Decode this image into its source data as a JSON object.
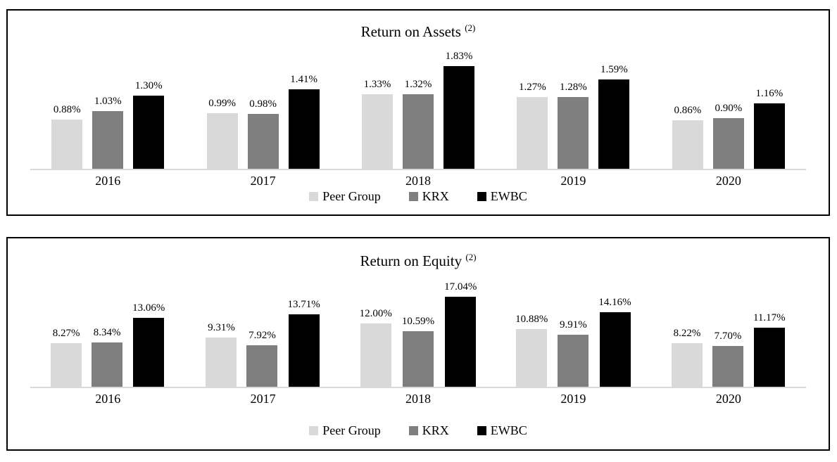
{
  "chart_data": [
    {
      "type": "bar",
      "title": "Return on Assets",
      "title_superscript": "(2)",
      "categories": [
        "2016",
        "2017",
        "2018",
        "2019",
        "2020"
      ],
      "series": [
        {
          "name": "Peer Group",
          "color": "#d9d9d9",
          "values": [
            0.88,
            0.99,
            1.33,
            1.27,
            0.86
          ],
          "labels": [
            "0.88%",
            "0.99%",
            "1.33%",
            "1.27%",
            "0.86%"
          ]
        },
        {
          "name": "KRX",
          "color": "#7f7f7f",
          "values": [
            1.03,
            0.98,
            1.32,
            1.28,
            0.9
          ],
          "labels": [
            "1.03%",
            "0.98%",
            "1.32%",
            "1.28%",
            "0.90%"
          ]
        },
        {
          "name": "EWBC",
          "color": "#000000",
          "values": [
            1.3,
            1.41,
            1.83,
            1.59,
            1.16
          ],
          "labels": [
            "1.30%",
            "1.41%",
            "1.83%",
            "1.59%",
            "1.16%"
          ]
        }
      ],
      "xlabel": "",
      "ylabel": "",
      "ylim": [
        0,
        2.0
      ],
      "grid": false,
      "legend_position": "bottom",
      "axis_color": "#d9d9d9",
      "value_suffix": "%"
    },
    {
      "type": "bar",
      "title": "Return on Equity",
      "title_superscript": "(2)",
      "categories": [
        "2016",
        "2017",
        "2018",
        "2019",
        "2020"
      ],
      "series": [
        {
          "name": "Peer Group",
          "color": "#d9d9d9",
          "values": [
            8.27,
            9.31,
            12.0,
            10.88,
            8.22
          ],
          "labels": [
            "8.27%",
            "9.31%",
            "12.00%",
            "10.88%",
            "8.22%"
          ]
        },
        {
          "name": "KRX",
          "color": "#7f7f7f",
          "values": [
            8.34,
            7.92,
            10.59,
            9.91,
            7.7
          ],
          "labels": [
            "8.34%",
            "7.92%",
            "10.59%",
            "9.91%",
            "7.70%"
          ]
        },
        {
          "name": "EWBC",
          "color": "#000000",
          "values": [
            13.06,
            13.71,
            17.04,
            14.16,
            11.17
          ],
          "labels": [
            "13.06%",
            "13.71%",
            "17.04%",
            "14.16%",
            "11.17%"
          ]
        }
      ],
      "xlabel": "",
      "ylabel": "",
      "ylim": [
        0,
        20
      ],
      "grid": false,
      "legend_position": "bottom",
      "axis_color": "#d9d9d9",
      "value_suffix": "%"
    }
  ],
  "colors": {
    "peer_group": "#d9d9d9",
    "krx": "#7f7f7f",
    "ewbc": "#000000",
    "axis_line": "#d9d9d9",
    "panel_border": "#000000"
  }
}
